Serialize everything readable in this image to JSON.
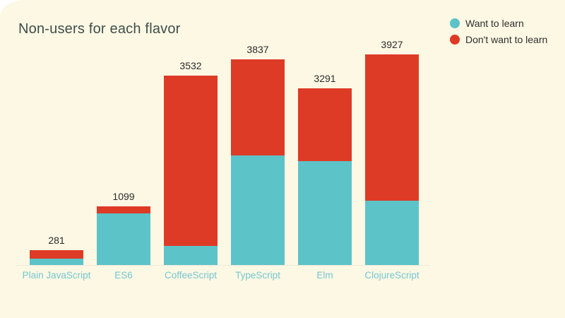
{
  "chart_data": {
    "type": "bar",
    "stacked": true,
    "title": "Non-users for each flavor",
    "categories": [
      "Plain JavaScript",
      "ES6",
      "CoffeeScript",
      "TypeScript",
      "Elm",
      "ClojureScript"
    ],
    "series": [
      {
        "name": "Want to learn",
        "color": "#5CC3C8",
        "values": [
          125,
          960,
          352,
          2040,
          1933,
          1199
        ]
      },
      {
        "name": "Don't want to learn",
        "color": "#DE3B26",
        "values": [
          156,
          139,
          3180,
          1797,
          1358,
          2728
        ]
      }
    ],
    "totals": [
      281,
      1099,
      3532,
      3837,
      3291,
      3927
    ],
    "total_labels_shown": true,
    "xlabel": "",
    "ylabel": "",
    "ylim": [
      0,
      3927
    ],
    "grid": false,
    "legend_position": "top-right"
  },
  "styles": {
    "canvas_background": "#FDF8E4",
    "page_background": "#FFFFFF",
    "title_color": "#3E4E4B",
    "axis_label_color": "#74C6CF",
    "value_label_color": "#2B2B2B",
    "axis_line_color": "#EDEADB"
  }
}
